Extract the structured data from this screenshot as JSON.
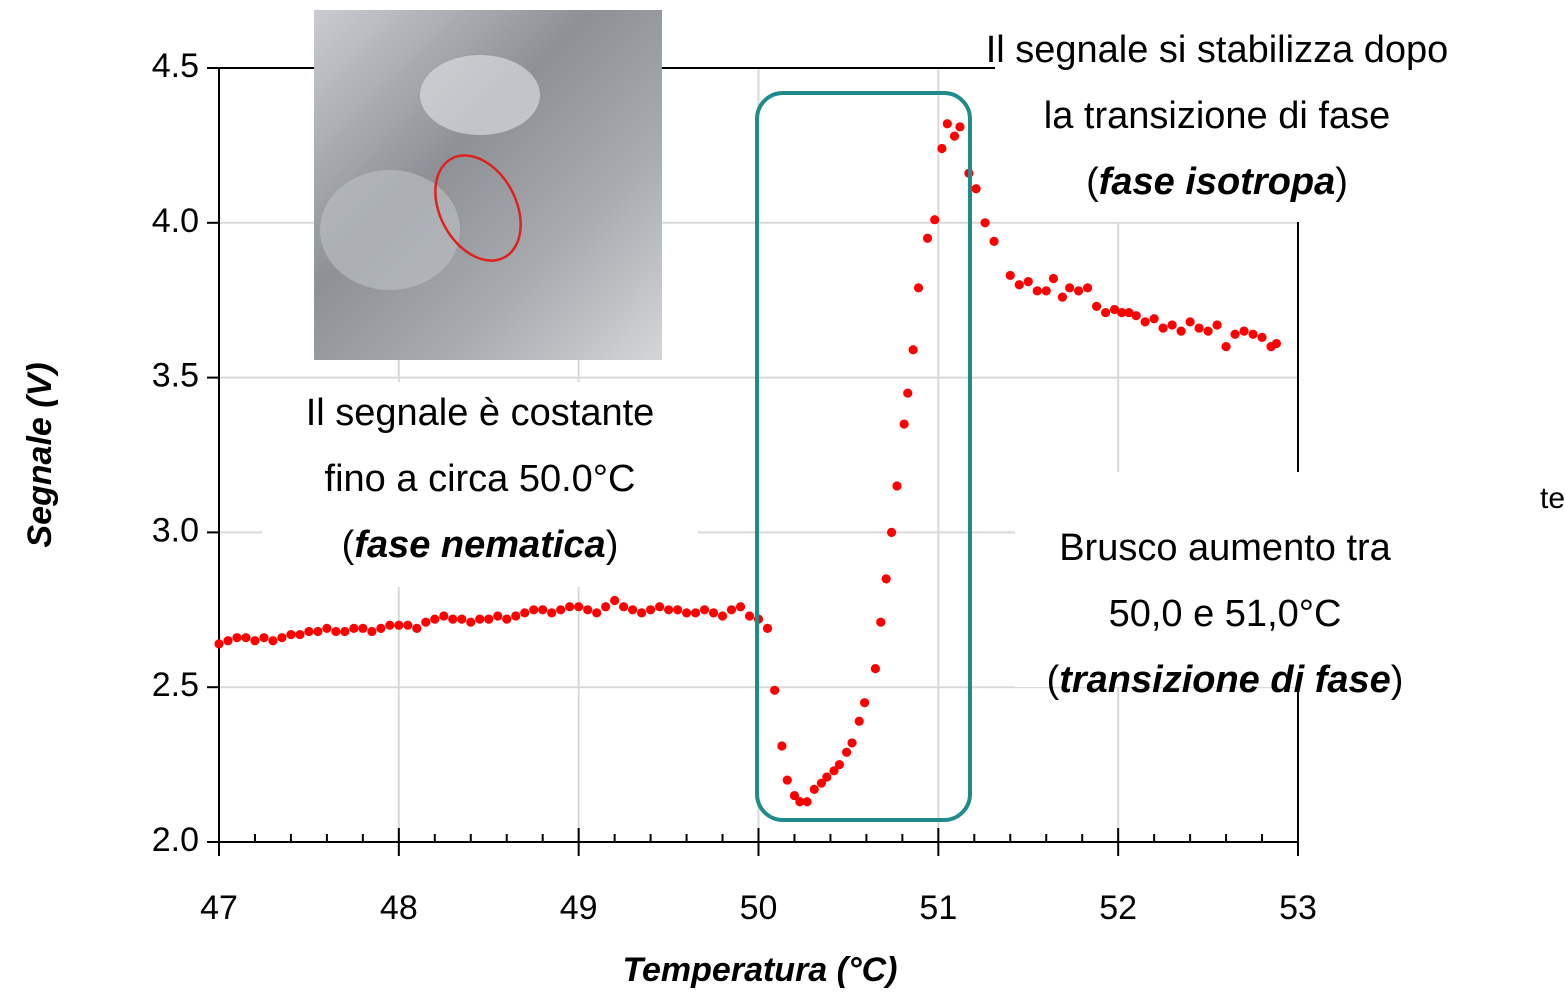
{
  "chart_data": {
    "type": "scatter",
    "color": "#ff0000",
    "x_label": "Temperatura (°C)",
    "y_label": "Segnale (V)",
    "xlim": [
      47,
      53
    ],
    "ylim": [
      2.0,
      4.5
    ],
    "xticks": [
      47,
      48,
      49,
      50,
      51,
      52,
      53
    ],
    "xminorticks": [
      47.2,
      47.4,
      47.6,
      47.8,
      48.2,
      48.4,
      48.6,
      48.8,
      49.2,
      49.4,
      49.6,
      49.8,
      50.2,
      50.4,
      50.6,
      50.8,
      51.2,
      51.4,
      51.6,
      51.8,
      52.2,
      52.4,
      52.6,
      52.8
    ],
    "yticks": [
      {
        "value": 2,
        "label": "2.0"
      },
      2.5,
      {
        "value": 3,
        "label": "3.0"
      },
      3.5,
      {
        "value": 4,
        "label": "4.0"
      },
      4.5
    ],
    "grid": true,
    "x": [
      47.0,
      47.05,
      47.1,
      47.15,
      47.2,
      47.25,
      47.3,
      47.35,
      47.4,
      47.45,
      47.5,
      47.55,
      47.6,
      47.65,
      47.7,
      47.75,
      47.8,
      47.85,
      47.9,
      47.95,
      48.0,
      48.05,
      48.1,
      48.15,
      48.2,
      48.25,
      48.3,
      48.35,
      48.4,
      48.45,
      48.5,
      48.55,
      48.6,
      48.65,
      48.7,
      48.75,
      48.8,
      48.85,
      48.9,
      48.95,
      49.0,
      49.05,
      49.1,
      49.15,
      49.2,
      49.25,
      49.3,
      49.35,
      49.4,
      49.45,
      49.5,
      49.55,
      49.6,
      49.65,
      49.7,
      49.75,
      49.8,
      49.85,
      49.9,
      49.95,
      50.0,
      50.05,
      50.09,
      50.13,
      50.16,
      50.2,
      50.23,
      50.27,
      50.31,
      50.35,
      50.38,
      50.42,
      50.45,
      50.49,
      50.52,
      50.56,
      50.59,
      50.65,
      50.68,
      50.71,
      50.74,
      50.77,
      50.81,
      50.83,
      50.86,
      50.89,
      50.94,
      50.98,
      51.02,
      51.05,
      51.09,
      51.12,
      51.17,
      51.21,
      51.26,
      51.31,
      51.4,
      51.45,
      51.5,
      51.55,
      51.6,
      51.64,
      51.69,
      51.73,
      51.78,
      51.83,
      51.88,
      51.93,
      51.98,
      52.02,
      52.06,
      52.1,
      52.15,
      52.2,
      52.25,
      52.3,
      52.35,
      52.4,
      52.45,
      52.5,
      52.55,
      52.6,
      52.65,
      52.7,
      52.75,
      52.8,
      52.85,
      52.88
    ],
    "values": [
      2.64,
      2.65,
      2.66,
      2.66,
      2.65,
      2.66,
      2.65,
      2.66,
      2.67,
      2.67,
      2.68,
      2.68,
      2.69,
      2.68,
      2.68,
      2.69,
      2.69,
      2.68,
      2.69,
      2.7,
      2.7,
      2.7,
      2.69,
      2.71,
      2.72,
      2.73,
      2.72,
      2.72,
      2.71,
      2.72,
      2.72,
      2.73,
      2.72,
      2.73,
      2.74,
      2.75,
      2.75,
      2.74,
      2.75,
      2.76,
      2.76,
      2.75,
      2.74,
      2.76,
      2.78,
      2.76,
      2.75,
      2.74,
      2.75,
      2.76,
      2.75,
      2.75,
      2.74,
      2.74,
      2.75,
      2.74,
      2.73,
      2.75,
      2.76,
      2.73,
      2.72,
      2.69,
      2.49,
      2.31,
      2.2,
      2.15,
      2.13,
      2.13,
      2.17,
      2.19,
      2.21,
      2.23,
      2.25,
      2.29,
      2.32,
      2.39,
      2.45,
      2.56,
      2.71,
      2.85,
      3.0,
      3.15,
      3.35,
      3.45,
      3.59,
      3.79,
      3.95,
      4.01,
      4.24,
      4.32,
      4.28,
      4.31,
      4.16,
      4.11,
      4.0,
      3.94,
      3.83,
      3.8,
      3.81,
      3.78,
      3.78,
      3.82,
      3.76,
      3.79,
      3.78,
      3.79,
      3.73,
      3.71,
      3.72,
      3.71,
      3.71,
      3.7,
      3.68,
      3.69,
      3.66,
      3.67,
      3.65,
      3.68,
      3.66,
      3.65,
      3.67,
      3.6,
      3.64,
      3.65,
      3.64,
      3.63,
      3.6,
      3.61
    ],
    "annotations": [
      {
        "lines": [
          "Il segnale si stabilizza dopo",
          "la transizione di fase"
        ],
        "emphasis_line": [
          "(",
          "fase isotropa",
          ")"
        ]
      },
      {
        "lines": [
          "Il segnale è costante",
          "fino a circa 50.0°C"
        ],
        "emphasis_line": [
          "(",
          "fase nematica",
          ")"
        ]
      },
      {
        "lines": [
          "Brusco aumento tra",
          "50,0 e 51,0°C"
        ],
        "emphasis_line": [
          "(",
          "transizione di fase",
          ")"
        ]
      }
    ],
    "side_text": "te"
  }
}
